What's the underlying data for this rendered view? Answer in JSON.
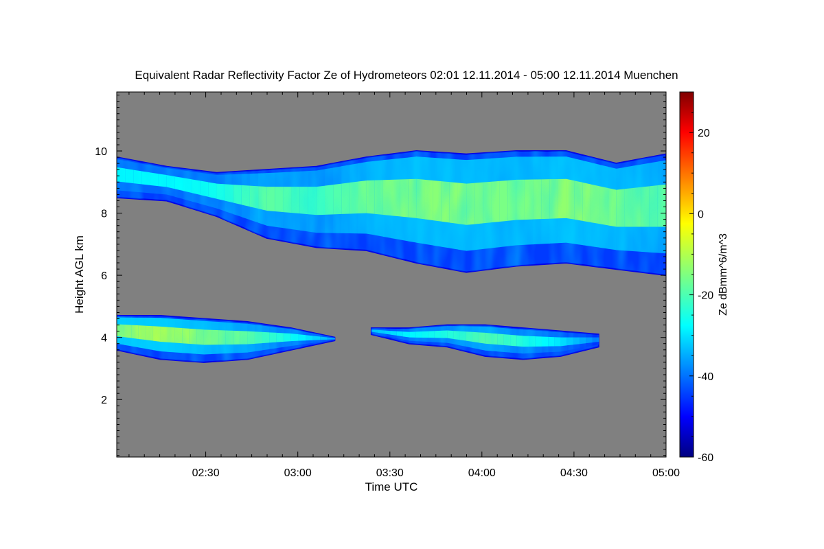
{
  "chart_data": {
    "type": "heatmap",
    "title": "Equivalent Radar Reflectivity Factor Ze of Hydrometeors   02:01 12.11.2014 - 05:00 12.11.2014 Muenchen",
    "xlabel": "Time UTC",
    "ylabel": "Height AGL km",
    "colorbar_label": "Ze dBmm^6/m^3",
    "xlim": [
      "02:01",
      "05:00"
    ],
    "ylim": [
      0.15,
      11.9
    ],
    "clim": [
      -60,
      30
    ],
    "x_ticks": [
      "02:30",
      "03:00",
      "03:30",
      "04:00",
      "04:30",
      "05:00"
    ],
    "y_ticks": [
      2,
      4,
      6,
      8,
      10
    ],
    "colorbar_ticks": [
      -60,
      -40,
      -20,
      0,
      20
    ],
    "background_color": "#808080",
    "colormap": "jet",
    "layers": [
      {
        "name": "upper cloud layer",
        "time_start": "02:01",
        "time_end": "05:00",
        "base_km": [
          8.5,
          8.4,
          7.9,
          7.2,
          6.9,
          6.8,
          6.4,
          6.1,
          6.3,
          6.4,
          6.2,
          6.0
        ],
        "top_km": [
          9.8,
          9.5,
          9.3,
          9.4,
          9.5,
          9.8,
          10.0,
          9.9,
          10.0,
          10.0,
          9.6,
          9.9
        ],
        "peak_ze_dbz": [
          -28,
          -28,
          -26,
          -18,
          -22,
          -16,
          -14,
          -14,
          -16,
          -13,
          -15,
          -18
        ]
      },
      {
        "name": "lower cloud layer 1",
        "time_start": "02:01",
        "time_end": "03:12",
        "base_km": [
          3.6,
          3.3,
          3.2,
          3.3,
          3.6,
          3.9
        ],
        "top_km": [
          4.7,
          4.7,
          4.6,
          4.5,
          4.3,
          4.0
        ],
        "peak_ze_dbz": [
          -12,
          -10,
          -14,
          -18,
          -26,
          -36
        ]
      },
      {
        "name": "lower cloud layer 2",
        "time_start": "03:24",
        "time_end": "04:38",
        "base_km": [
          4.1,
          3.8,
          3.7,
          3.4,
          3.3,
          3.4,
          3.7
        ],
        "top_km": [
          4.3,
          4.3,
          4.4,
          4.4,
          4.3,
          4.2,
          4.1
        ],
        "peak_ze_dbz": [
          -34,
          -28,
          -24,
          -18,
          -24,
          -30,
          -40
        ]
      }
    ]
  }
}
